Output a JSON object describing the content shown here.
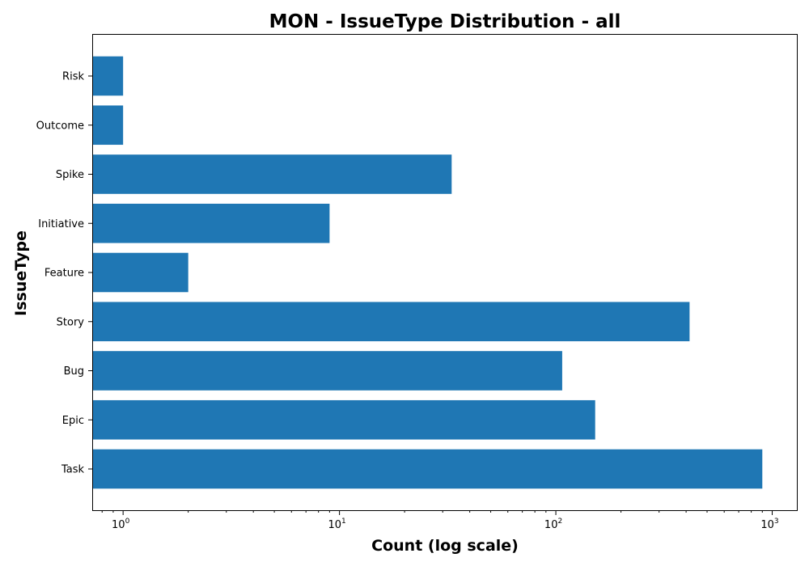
{
  "chart_data": {
    "type": "bar",
    "orientation": "horizontal",
    "title": "MON - IssueType Distribution - all",
    "xlabel": "Count (log scale)",
    "ylabel": "IssueType",
    "xscale": "log",
    "xlim": [
      0.72,
      1300
    ],
    "categories": [
      "Task",
      "Epic",
      "Bug",
      "Story",
      "Feature",
      "Initiative",
      "Spike",
      "Outcome",
      "Risk"
    ],
    "values": [
      900,
      152,
      107,
      415,
      2,
      9,
      33,
      1,
      1
    ],
    "x_ticks": [
      {
        "value": 1,
        "base": "10",
        "exp": "0"
      },
      {
        "value": 10,
        "base": "10",
        "exp": "1"
      },
      {
        "value": 100,
        "base": "10",
        "exp": "2"
      },
      {
        "value": 1000,
        "base": "10",
        "exp": "3"
      }
    ],
    "bar_color": "#1f77b4",
    "grid": false,
    "legend": "none"
  }
}
